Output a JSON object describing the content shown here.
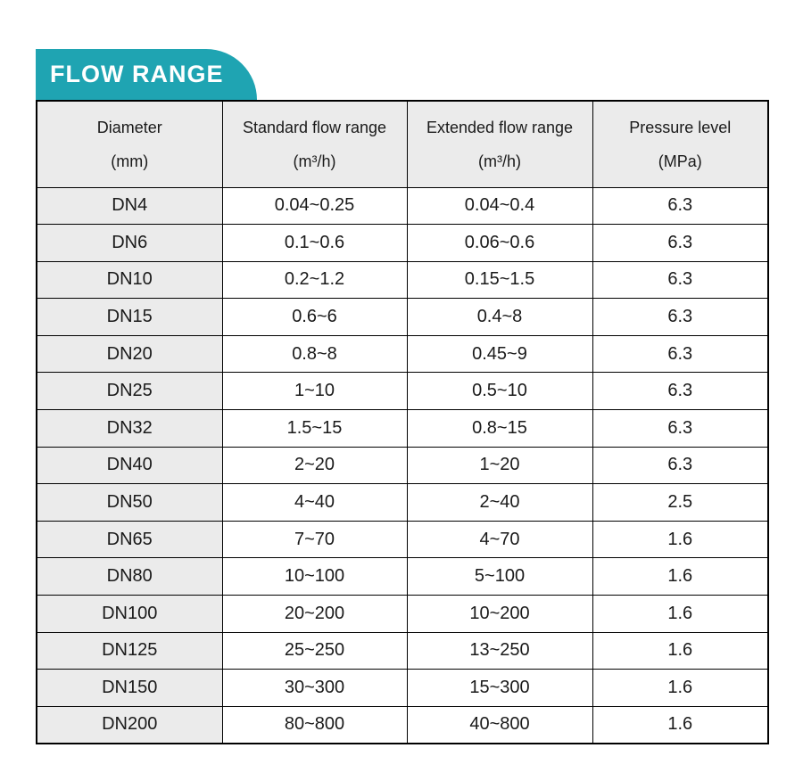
{
  "banner": {
    "title": "FLOW RANGE"
  },
  "colors": {
    "accent_teal": "#1fa4b2",
    "banner_text": "#ffffff",
    "header_row_bg": "#ebebeb",
    "first_column_bg": "#ebebeb",
    "grid_border": "#000000",
    "text": "#1a1a1a"
  },
  "table": {
    "headers": [
      {
        "line1": "Diameter",
        "line2": "(mm)"
      },
      {
        "line1": "Standard flow range",
        "line2": "(m³/h)"
      },
      {
        "line1": "Extended flow range",
        "line2": "(m³/h)"
      },
      {
        "line1": "Pressure level",
        "line2": "(MPa)"
      }
    ],
    "rows": [
      [
        "DN4",
        "0.04~0.25",
        "0.04~0.4",
        "6.3"
      ],
      [
        "DN6",
        "0.1~0.6",
        "0.06~0.6",
        "6.3"
      ],
      [
        "DN10",
        "0.2~1.2",
        "0.15~1.5",
        "6.3"
      ],
      [
        "DN15",
        "0.6~6",
        "0.4~8",
        "6.3"
      ],
      [
        "DN20",
        "0.8~8",
        "0.45~9",
        "6.3"
      ],
      [
        "DN25",
        "1~10",
        "0.5~10",
        "6.3"
      ],
      [
        "DN32",
        "1.5~15",
        "0.8~15",
        "6.3"
      ],
      [
        "DN40",
        "2~20",
        "1~20",
        "6.3"
      ],
      [
        "DN50",
        "4~40",
        "2~40",
        "2.5"
      ],
      [
        "DN65",
        "7~70",
        "4~70",
        "1.6"
      ],
      [
        "DN80",
        "10~100",
        "5~100",
        "1.6"
      ],
      [
        "DN100",
        "20~200",
        "10~200",
        "1.6"
      ],
      [
        "DN125",
        "25~250",
        "13~250",
        "1.6"
      ],
      [
        "DN150",
        "30~300",
        "15~300",
        "1.6"
      ],
      [
        "DN200",
        "80~800",
        "40~800",
        "1.6"
      ]
    ]
  }
}
